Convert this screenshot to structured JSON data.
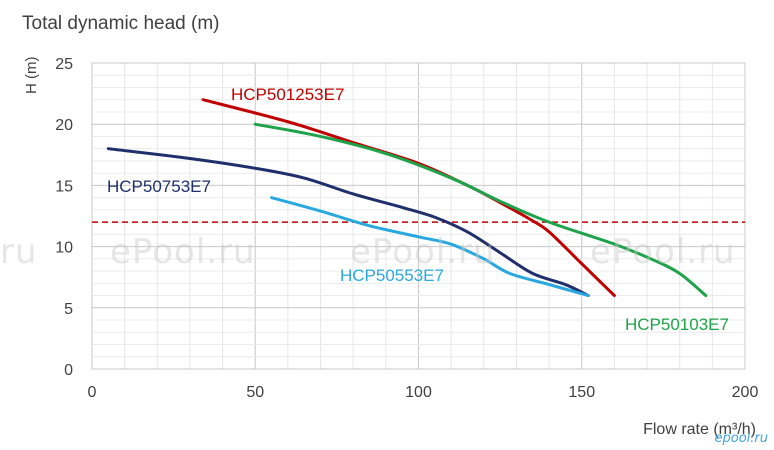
{
  "chart_data": {
    "type": "line",
    "title": "Total dynamic head (m)",
    "xlabel": "Flow rate (m³/h)",
    "ylabel": "H (m)",
    "xlim": [
      0,
      200
    ],
    "ylim": [
      0,
      25
    ],
    "xticks": [
      0,
      50,
      100,
      150,
      200
    ],
    "yticks": [
      0,
      5,
      10,
      15,
      20,
      25
    ],
    "grid": true,
    "reference_line": {
      "y": 12,
      "color": "#c00000",
      "style": "dashed"
    },
    "series": [
      {
        "name": "HCP501253E7",
        "color": "#c00000",
        "x": [
          34,
          60,
          80,
          100,
          115,
          125,
          135,
          140,
          150,
          160
        ],
        "y": [
          22,
          20.2,
          18.5,
          16.8,
          15,
          13.6,
          12.1,
          11.2,
          8.6,
          6
        ]
      },
      {
        "name": "HCP50103E7",
        "color": "#1fa34a",
        "x": [
          50,
          70,
          90,
          110,
          125,
          140,
          160,
          172,
          180,
          188
        ],
        "y": [
          20,
          19,
          17.6,
          15.6,
          13.7,
          12,
          10.2,
          8.9,
          7.8,
          6
        ]
      },
      {
        "name": "HCP50753E7",
        "color": "#1f2f6b",
        "x": [
          5,
          30,
          50,
          65,
          80,
          95,
          105,
          115,
          125,
          135,
          145,
          152
        ],
        "y": [
          18,
          17.2,
          16.4,
          15.6,
          14.3,
          13.2,
          12.4,
          11.2,
          9.5,
          7.8,
          6.9,
          6
        ]
      },
      {
        "name": "HCP50553E7",
        "color": "#29a8e0",
        "x": [
          55,
          70,
          85,
          100,
          110,
          120,
          128,
          140,
          152
        ],
        "y": [
          14,
          12.9,
          11.7,
          10.8,
          10.2,
          9,
          7.8,
          6.9,
          6
        ]
      }
    ],
    "watermarks": [
      "ru",
      "ePool.ru",
      "ePool.ru",
      "ePool.ru"
    ],
    "logo_text": "epool.ru"
  }
}
